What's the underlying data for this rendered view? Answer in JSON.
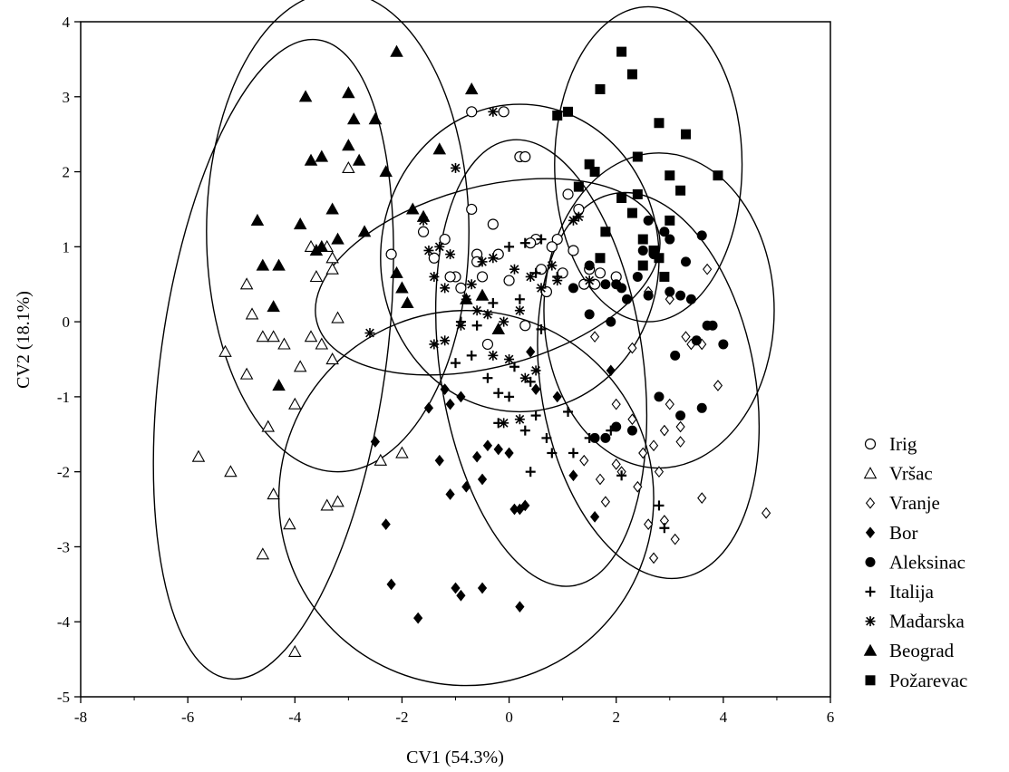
{
  "chart_data": {
    "type": "scatter",
    "xlabel": "CV1 (54.3%)",
    "ylabel": "CV2 (18.1%)",
    "xlim": [
      -8,
      6
    ],
    "ylim": [
      -5,
      4
    ],
    "xticks": [
      -8,
      -6,
      -4,
      -2,
      0,
      2,
      4,
      6
    ],
    "yticks": [
      -5,
      -4,
      -3,
      -2,
      -1,
      0,
      1,
      2,
      3,
      4
    ],
    "grid": false,
    "legend_position": "right",
    "series": [
      {
        "name": "Irig",
        "marker": "circle-open",
        "x": [
          -0.7,
          -0.1,
          0.2,
          0.3,
          -2.2,
          -1.6,
          -1.2,
          -0.7,
          -0.3,
          0.5,
          0.9,
          1.1,
          1.3,
          -1.4,
          -1.0,
          -0.6,
          -0.2,
          0.4,
          0.8,
          1.2,
          1.5,
          1.7,
          -1.1,
          -0.9,
          -0.5,
          0.0,
          0.6,
          1.0,
          1.4,
          2.0,
          -0.4,
          0.3,
          0.7,
          1.6,
          -0.6
        ],
        "y": [
          2.8,
          2.8,
          2.2,
          2.2,
          0.9,
          1.2,
          1.1,
          1.5,
          1.3,
          1.1,
          1.1,
          1.7,
          1.5,
          0.85,
          0.6,
          0.9,
          0.9,
          1.05,
          1.0,
          0.95,
          0.7,
          0.65,
          0.6,
          0.45,
          0.6,
          0.55,
          0.7,
          0.65,
          0.5,
          0.6,
          -0.3,
          -0.05,
          0.4,
          0.5,
          0.8
        ]
      },
      {
        "name": "Vršac",
        "marker": "triangle-open",
        "x": [
          -3.7,
          -3.4,
          -3.3,
          -4.9,
          -4.8,
          -4.6,
          -4.2,
          -3.9,
          -3.5,
          -3.3,
          -4.5,
          -4.0,
          -3.7,
          -3.2,
          -5.3,
          -4.9,
          -4.4,
          -3.6,
          -3.3,
          -5.8,
          -5.2,
          -4.4,
          -4.1,
          -3.4,
          -3.2,
          -4.6,
          -4.0,
          -2.0,
          -2.4,
          -3.0
        ],
        "y": [
          1.0,
          1.0,
          0.7,
          0.5,
          0.1,
          -0.2,
          -0.3,
          -0.6,
          -0.3,
          -0.5,
          -1.4,
          -1.1,
          -0.2,
          0.05,
          -0.4,
          -0.7,
          -0.2,
          0.6,
          0.85,
          -1.8,
          -2.0,
          -2.3,
          -2.7,
          -2.45,
          -2.4,
          -3.1,
          -4.4,
          -1.75,
          -1.85,
          2.05
        ]
      },
      {
        "name": "Vranje",
        "marker": "diamond-open",
        "x": [
          2.6,
          3.0,
          3.3,
          3.6,
          3.7,
          1.6,
          2.0,
          2.3,
          2.7,
          3.0,
          2.5,
          2.9,
          3.2,
          3.6,
          1.8,
          2.1,
          1.4,
          1.7,
          2.0,
          2.4,
          2.8,
          3.1,
          2.6,
          2.9,
          2.7,
          3.2,
          3.4,
          4.8,
          3.9,
          2.3
        ],
        "y": [
          0.4,
          0.3,
          -0.2,
          -0.3,
          0.7,
          -0.2,
          -1.1,
          -1.3,
          -1.65,
          -1.1,
          -1.75,
          -1.45,
          -1.6,
          -2.35,
          -2.4,
          -2.0,
          -1.85,
          -2.1,
          -1.9,
          -2.2,
          -2.0,
          -2.9,
          -2.7,
          -2.65,
          -3.15,
          -1.4,
          -0.3,
          -2.55,
          -0.85,
          -0.35
        ]
      },
      {
        "name": "Bor",
        "marker": "diamond-filled",
        "x": [
          -1.2,
          -1.1,
          -0.9,
          -0.6,
          -0.4,
          -0.2,
          0.0,
          0.2,
          -1.3,
          -1.1,
          -0.8,
          -0.5,
          -0.2,
          0.1,
          0.3,
          -2.5,
          -2.3,
          -2.2,
          -1.7,
          -1.0,
          -0.9,
          -0.5,
          0.2,
          0.5,
          0.9,
          1.2,
          1.6,
          1.9,
          -1.5,
          0.4
        ],
        "y": [
          -0.9,
          -1.1,
          -1.0,
          -1.8,
          -1.65,
          -1.7,
          -1.75,
          -2.5,
          -1.85,
          -2.3,
          -2.2,
          -2.1,
          -1.7,
          -2.5,
          -2.45,
          -1.6,
          -2.7,
          -3.5,
          -3.95,
          -3.55,
          -3.65,
          -3.55,
          -3.8,
          -0.9,
          -1.0,
          -2.05,
          -2.6,
          -0.65,
          -1.15,
          -0.4
        ]
      },
      {
        "name": "Aleksinac",
        "marker": "circle-filled",
        "x": [
          1.5,
          2.0,
          2.4,
          2.7,
          3.0,
          3.2,
          3.6,
          3.8,
          2.1,
          2.6,
          2.9,
          3.3,
          1.2,
          1.5,
          1.9,
          2.2,
          2.6,
          3.0,
          3.4,
          3.7,
          4.0,
          3.1,
          1.8,
          2.3,
          2.8,
          3.2,
          3.5,
          1.6,
          2.0,
          2.5,
          3.6,
          1.8
        ],
        "y": [
          0.75,
          0.5,
          0.6,
          0.9,
          0.4,
          0.35,
          1.15,
          -0.05,
          0.45,
          1.35,
          1.2,
          0.8,
          0.45,
          0.1,
          0.0,
          0.3,
          0.35,
          1.1,
          0.3,
          -0.05,
          -0.3,
          -0.45,
          -1.55,
          -1.45,
          -1.0,
          -1.25,
          -0.25,
          -1.55,
          -1.4,
          0.95,
          -1.15,
          0.5
        ]
      },
      {
        "name": "Italija",
        "marker": "plus",
        "x": [
          0.0,
          0.3,
          0.6,
          0.9,
          0.5,
          0.2,
          -0.3,
          -0.6,
          -0.9,
          -1.0,
          -0.7,
          -0.4,
          0.1,
          0.5,
          0.8,
          1.2,
          -0.2,
          0.3,
          0.7,
          1.1,
          0.4,
          0.0,
          -0.2,
          0.4,
          0.6,
          1.5,
          1.9,
          2.1,
          2.8,
          2.9
        ],
        "y": [
          1.0,
          1.05,
          1.1,
          0.6,
          0.65,
          0.3,
          0.25,
          -0.05,
          0.0,
          -0.55,
          -0.45,
          -0.75,
          -0.6,
          -1.25,
          -1.75,
          -1.75,
          -1.35,
          -1.45,
          -1.55,
          -1.2,
          -2.0,
          -1.0,
          -0.95,
          -0.8,
          -0.1,
          -1.55,
          -1.45,
          -2.05,
          -2.45,
          -2.75
        ]
      },
      {
        "name": "Mađarska",
        "marker": "asterisk",
        "x": [
          -0.3,
          -1.0,
          -1.6,
          -1.3,
          -1.1,
          -1.5,
          -1.4,
          -1.2,
          -0.8,
          -0.6,
          -0.4,
          -0.1,
          0.2,
          0.6,
          0.8,
          1.2,
          1.3,
          1.5,
          0.9,
          0.4,
          0.1,
          -0.3,
          -0.5,
          -0.7,
          -0.9,
          -2.6,
          -1.2,
          -1.4,
          -0.3,
          0.0,
          0.3,
          0.5,
          -0.1,
          0.2
        ],
        "y": [
          2.8,
          2.05,
          1.35,
          1.0,
          0.9,
          0.95,
          0.6,
          0.45,
          0.3,
          0.15,
          0.1,
          0.0,
          0.15,
          0.45,
          0.75,
          1.35,
          1.4,
          0.55,
          0.55,
          0.6,
          0.7,
          0.85,
          0.8,
          0.5,
          -0.05,
          -0.15,
          -0.25,
          -0.3,
          -0.45,
          -0.5,
          -0.75,
          -0.65,
          -1.35,
          -1.3
        ]
      },
      {
        "name": "Beograd",
        "marker": "triangle-filled",
        "x": [
          -2.1,
          -3.8,
          -3.0,
          -2.9,
          -2.5,
          -3.7,
          -3.5,
          -3.0,
          -2.8,
          -2.3,
          -4.7,
          -4.3,
          -3.9,
          -3.6,
          -3.3,
          -2.7,
          -2.1,
          -2.0,
          -1.9,
          -1.6,
          -1.8,
          -1.3,
          -3.2,
          -3.5,
          -4.3,
          -0.7,
          -0.5,
          -0.8,
          -0.2,
          -4.4,
          -4.6
        ],
        "y": [
          3.6,
          3.0,
          3.05,
          2.7,
          2.7,
          2.15,
          2.2,
          2.35,
          2.15,
          2.0,
          1.35,
          0.75,
          1.3,
          0.95,
          1.5,
          1.2,
          0.65,
          0.45,
          0.25,
          1.4,
          1.5,
          2.3,
          1.1,
          1.0,
          -0.85,
          3.1,
          0.35,
          0.3,
          -0.1,
          0.2,
          0.75
        ]
      },
      {
        "name": "Požarevac",
        "marker": "square-filled",
        "x": [
          2.1,
          2.3,
          1.7,
          1.1,
          0.9,
          1.5,
          1.3,
          2.8,
          3.3,
          2.4,
          1.6,
          2.4,
          2.1,
          3.0,
          3.2,
          3.9,
          2.3,
          2.5,
          2.7,
          2.8,
          2.9,
          2.5,
          3.0,
          1.7,
          1.8
        ],
        "y": [
          3.6,
          3.3,
          3.1,
          2.8,
          2.75,
          2.1,
          1.8,
          2.65,
          2.5,
          2.2,
          2.0,
          1.7,
          1.65,
          1.95,
          1.75,
          1.95,
          1.45,
          1.1,
          0.95,
          0.85,
          0.6,
          0.75,
          1.35,
          0.85,
          1.2
        ]
      }
    ],
    "ellipses": [
      {
        "group": "Irig",
        "cx": 0.2,
        "cy": 0.85,
        "rx": 2.6,
        "ry": 2.05,
        "angle_deg": 0
      },
      {
        "group": "Vršac",
        "cx": -4.4,
        "cy": -0.5,
        "rx": 2.1,
        "ry": 4.3,
        "angle_deg": -8
      },
      {
        "group": "Vranje",
        "cx": 2.6,
        "cy": -0.85,
        "rx": 2.0,
        "ry": 2.6,
        "angle_deg": 10
      },
      {
        "group": "Bor",
        "cx": -0.8,
        "cy": -2.35,
        "rx": 3.5,
        "ry": 2.5,
        "angle_deg": 0
      },
      {
        "group": "Aleksinac",
        "cx": 2.8,
        "cy": 0.15,
        "rx": 2.15,
        "ry": 2.1,
        "angle_deg": 0
      },
      {
        "group": "Italija",
        "cx": 0.6,
        "cy": -0.55,
        "rx": 1.9,
        "ry": 3.0,
        "angle_deg": 8
      },
      {
        "group": "Mađarska",
        "cx": -0.4,
        "cy": 0.6,
        "rx": 3.3,
        "ry": 1.2,
        "angle_deg": 15
      },
      {
        "group": "Beograd",
        "cx": -3.2,
        "cy": 1.2,
        "rx": 2.45,
        "ry": 3.2,
        "angle_deg": 0
      },
      {
        "group": "Požarevac",
        "cx": 2.6,
        "cy": 2.1,
        "rx": 1.75,
        "ry": 2.1,
        "angle_deg": 0
      }
    ]
  }
}
